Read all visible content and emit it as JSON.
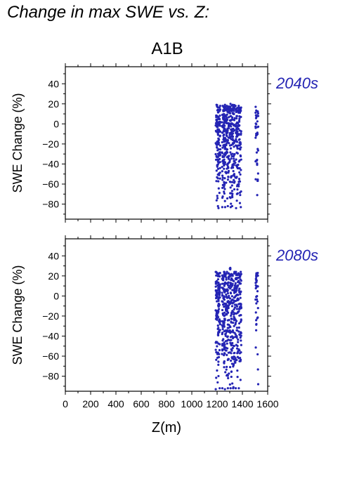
{
  "figure": {
    "title": "Change in max SWE vs. Z:",
    "scenario": "A1B",
    "xlabel": "Z(m)",
    "ylabel": "SWE Change (%)",
    "point_color": "#2424b4"
  },
  "chart_data": [
    {
      "type": "scatter",
      "period": "2040s",
      "xlim": [
        0,
        1600
      ],
      "ylim": [
        -95,
        57
      ],
      "xticks": [
        0,
        200,
        400,
        600,
        800,
        1000,
        1200,
        1400,
        1600
      ],
      "yticks": [
        40,
        20,
        0,
        -20,
        -40,
        -60,
        -80
      ],
      "ytick_labels": [
        "40",
        "20",
        "0",
        "−20",
        "−40",
        "−60",
        "−80"
      ],
      "grid": false,
      "columns": [
        {
          "x": 1200,
          "ymin": -84,
          "ymax": 19
        },
        {
          "x": 1215,
          "ymin": -82,
          "ymax": 18
        },
        {
          "x": 1250,
          "ymin": -83,
          "ymax": 18
        },
        {
          "x": 1265,
          "ymin": -83,
          "ymax": 19
        },
        {
          "x": 1285,
          "ymin": -82,
          "ymax": 18
        },
        {
          "x": 1310,
          "ymin": -83,
          "ymax": 20
        },
        {
          "x": 1330,
          "ymin": -82,
          "ymax": 19
        },
        {
          "x": 1355,
          "ymin": -84,
          "ymax": 18
        },
        {
          "x": 1380,
          "ymin": -83,
          "ymax": 18
        },
        {
          "x": 1515,
          "ymin": -71,
          "ymax": 17
        }
      ]
    },
    {
      "type": "scatter",
      "period": "2080s",
      "xlim": [
        0,
        1600
      ],
      "ylim": [
        -95,
        57
      ],
      "xticks": [
        0,
        200,
        400,
        600,
        800,
        1000,
        1200,
        1400,
        1600
      ],
      "xtick_labels": [
        "0",
        "200",
        "400",
        "600",
        "800",
        "1000",
        "1200",
        "1400",
        "1600"
      ],
      "yticks": [
        40,
        20,
        0,
        -20,
        -40,
        -60,
        -80
      ],
      "ytick_labels": [
        "40",
        "20",
        "0",
        "−20",
        "−40",
        "−60",
        "−80"
      ],
      "grid": false,
      "columns": [
        {
          "x": 1200,
          "ymin": -93,
          "ymax": 24
        },
        {
          "x": 1215,
          "ymin": -92,
          "ymax": 23
        },
        {
          "x": 1250,
          "ymin": -92,
          "ymax": 24
        },
        {
          "x": 1265,
          "ymin": -93,
          "ymax": 24
        },
        {
          "x": 1285,
          "ymin": -92,
          "ymax": 24
        },
        {
          "x": 1310,
          "ymin": -92,
          "ymax": 28
        },
        {
          "x": 1330,
          "ymin": -92,
          "ymax": 24
        },
        {
          "x": 1355,
          "ymin": -92,
          "ymax": 24
        },
        {
          "x": 1380,
          "ymin": -92,
          "ymax": 24
        },
        {
          "x": 1515,
          "ymin": -88,
          "ymax": 23
        }
      ]
    }
  ]
}
